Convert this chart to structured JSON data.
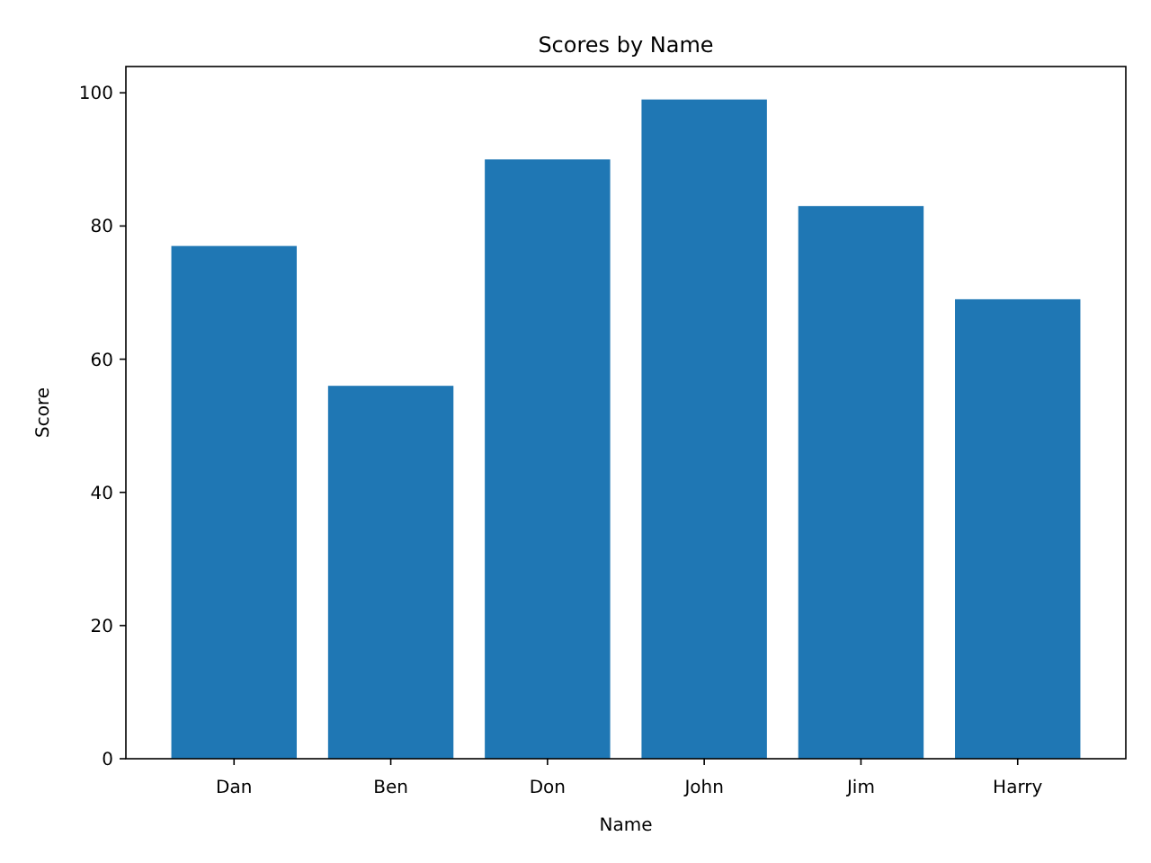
{
  "chart_data": {
    "type": "bar",
    "title": "Scores by Name",
    "xlabel": "Name",
    "ylabel": "Score",
    "categories": [
      "Dan",
      "Ben",
      "Don",
      "John",
      "Jim",
      "Harry"
    ],
    "values": [
      77,
      56,
      90,
      99,
      83,
      69
    ],
    "color": "#1f77b4",
    "ylim": [
      0,
      103.95
    ],
    "yticks": [
      0,
      20,
      40,
      60,
      80,
      100
    ]
  }
}
